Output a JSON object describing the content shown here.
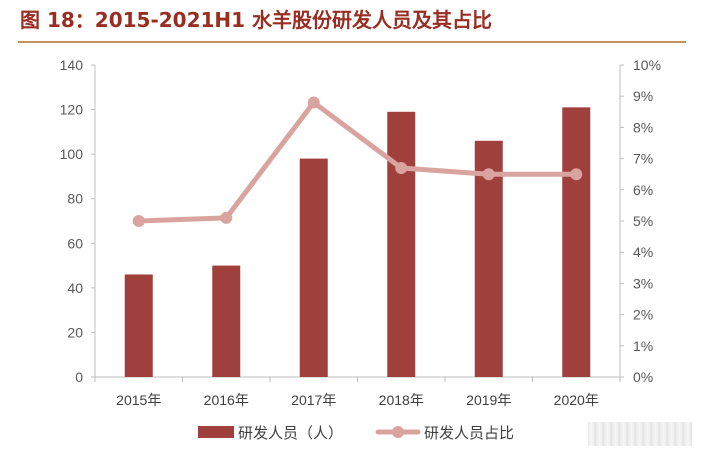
{
  "title": "图 18：2015-2021H1 水羊股份研发人员及其占比",
  "chart_data": {
    "type": "bar",
    "categories": [
      "2015年",
      "2016年",
      "2017年",
      "2018年",
      "2019年",
      "2020年"
    ],
    "series": [
      {
        "name": "研发人员（人）",
        "type": "bar",
        "axis": "left",
        "color": "#a0403d",
        "values": [
          46,
          50,
          98,
          119,
          106,
          121
        ]
      },
      {
        "name": "研发人员占比",
        "type": "line",
        "axis": "right",
        "color": "#d9a4a0",
        "values": [
          5.0,
          5.1,
          8.8,
          6.7,
          6.5,
          6.5
        ]
      }
    ],
    "y_left": {
      "range": [
        0,
        140
      ],
      "ticks": [
        "0",
        "20",
        "40",
        "60",
        "80",
        "100",
        "120",
        "140"
      ]
    },
    "y_right": {
      "range": [
        0,
        10
      ],
      "unit": "%",
      "ticks": [
        "0%",
        "1%",
        "2%",
        "3%",
        "4%",
        "5%",
        "6%",
        "7%",
        "8%",
        "9%",
        "10%"
      ]
    },
    "grid": false,
    "legend_position": "bottom"
  }
}
